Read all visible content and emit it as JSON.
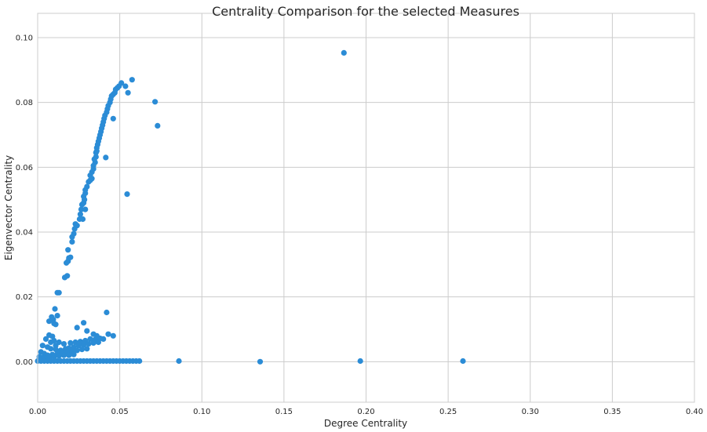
{
  "chart_data": {
    "type": "scatter",
    "title": "Centrality Comparison for the selected Measures",
    "xlabel": "Degree Centrality",
    "ylabel": "Eigenvector Centrality",
    "xlim": [
      0.0,
      0.4
    ],
    "ylim": [
      -0.0125,
      0.1075
    ],
    "xticks": [
      0.0,
      0.05,
      0.1,
      0.15,
      0.2,
      0.25,
      0.3,
      0.35,
      0.4
    ],
    "xtick_labels": [
      "0.00",
      "0.05",
      "0.10",
      "0.15",
      "0.20",
      "0.25",
      "0.30",
      "0.35",
      "0.40"
    ],
    "yticks": [
      0.0,
      0.02,
      0.04,
      0.06,
      0.08,
      0.1
    ],
    "ytick_labels": [
      "0.00",
      "0.02",
      "0.04",
      "0.06",
      "0.08",
      "0.10"
    ],
    "grid": true,
    "legend": "none",
    "marker_color": "#2b8cd6",
    "series": [
      {
        "points": [
          [
            0.012,
            0.0213
          ],
          [
            0.013,
            0.0213
          ],
          [
            0.0165,
            0.026
          ],
          [
            0.018,
            0.0265
          ],
          [
            0.0175,
            0.0305
          ],
          [
            0.0185,
            0.031
          ],
          [
            0.019,
            0.032
          ],
          [
            0.02,
            0.0322
          ],
          [
            0.0185,
            0.0345
          ],
          [
            0.021,
            0.037
          ],
          [
            0.021,
            0.0385
          ],
          [
            0.022,
            0.0395
          ],
          [
            0.0225,
            0.041
          ],
          [
            0.023,
            0.0425
          ],
          [
            0.024,
            0.042
          ],
          [
            0.0255,
            0.044
          ],
          [
            0.026,
            0.0455
          ],
          [
            0.0275,
            0.044
          ],
          [
            0.0265,
            0.047
          ],
          [
            0.027,
            0.0485
          ],
          [
            0.028,
            0.049
          ],
          [
            0.029,
            0.047
          ],
          [
            0.0285,
            0.05
          ],
          [
            0.028,
            0.051
          ],
          [
            0.029,
            0.052
          ],
          [
            0.029,
            0.053
          ],
          [
            0.03,
            0.054
          ],
          [
            0.031,
            0.0555
          ],
          [
            0.032,
            0.056
          ],
          [
            0.033,
            0.0565
          ],
          [
            0.032,
            0.0575
          ],
          [
            0.033,
            0.0585
          ],
          [
            0.034,
            0.0595
          ],
          [
            0.034,
            0.0605
          ],
          [
            0.035,
            0.0615
          ],
          [
            0.0345,
            0.0625
          ],
          [
            0.0355,
            0.0632
          ],
          [
            0.0355,
            0.0645
          ],
          [
            0.036,
            0.065
          ],
          [
            0.036,
            0.066
          ],
          [
            0.0365,
            0.067
          ],
          [
            0.037,
            0.068
          ],
          [
            0.0375,
            0.069
          ],
          [
            0.038,
            0.07
          ],
          [
            0.0385,
            0.071
          ],
          [
            0.039,
            0.072
          ],
          [
            0.0395,
            0.073
          ],
          [
            0.04,
            0.074
          ],
          [
            0.0405,
            0.075
          ],
          [
            0.041,
            0.076
          ],
          [
            0.042,
            0.077
          ],
          [
            0.0425,
            0.078
          ],
          [
            0.043,
            0.079
          ],
          [
            0.044,
            0.08
          ],
          [
            0.0445,
            0.081
          ],
          [
            0.045,
            0.082
          ],
          [
            0.046,
            0.0825
          ],
          [
            0.047,
            0.083
          ],
          [
            0.0475,
            0.084
          ],
          [
            0.0485,
            0.0845
          ],
          [
            0.0495,
            0.085
          ],
          [
            0.051,
            0.086
          ],
          [
            0.0535,
            0.085
          ],
          [
            0.055,
            0.083
          ],
          [
            0.0575,
            0.087
          ],
          [
            0.046,
            0.075
          ],
          [
            0.0415,
            0.063
          ],
          [
            0.0545,
            0.0517
          ],
          [
            0.0715,
            0.0802
          ],
          [
            0.073,
            0.0728
          ],
          [
            0.1865,
            0.0953
          ],
          [
            0.0105,
            0.0163
          ],
          [
            0.012,
            0.0142
          ],
          [
            0.0085,
            0.0138
          ],
          [
            0.0095,
            0.013
          ],
          [
            0.007,
            0.0125
          ],
          [
            0.01,
            0.0118
          ],
          [
            0.011,
            0.0115
          ],
          [
            0.028,
            0.012
          ],
          [
            0.024,
            0.0105
          ],
          [
            0.03,
            0.0095
          ],
          [
            0.042,
            0.0152
          ],
          [
            0.034,
            0.0085
          ],
          [
            0.036,
            0.008
          ],
          [
            0.043,
            0.0085
          ],
          [
            0.046,
            0.008
          ],
          [
            0.007,
            0.0082
          ],
          [
            0.009,
            0.0078
          ],
          [
            0.005,
            0.007
          ],
          [
            0.01,
            0.0065
          ],
          [
            0.013,
            0.006
          ],
          [
            0.016,
            0.0055
          ],
          [
            0.02,
            0.0058
          ],
          [
            0.023,
            0.006
          ],
          [
            0.026,
            0.0062
          ],
          [
            0.029,
            0.0065
          ],
          [
            0.032,
            0.007
          ],
          [
            0.035,
            0.0068
          ],
          [
            0.038,
            0.0072
          ],
          [
            0.04,
            0.007
          ],
          [
            0.003,
            0.005
          ],
          [
            0.006,
            0.0045
          ],
          [
            0.008,
            0.004
          ],
          [
            0.011,
            0.0038
          ],
          [
            0.014,
            0.0035
          ],
          [
            0.017,
            0.004
          ],
          [
            0.019,
            0.0042
          ],
          [
            0.022,
            0.0045
          ],
          [
            0.025,
            0.005
          ],
          [
            0.028,
            0.0052
          ],
          [
            0.031,
            0.0055
          ],
          [
            0.034,
            0.0058
          ],
          [
            0.037,
            0.006
          ],
          [
            0.002,
            0.003
          ],
          [
            0.004,
            0.0025
          ],
          [
            0.006,
            0.002
          ],
          [
            0.009,
            0.0022
          ],
          [
            0.012,
            0.0025
          ],
          [
            0.015,
            0.0028
          ],
          [
            0.018,
            0.003
          ],
          [
            0.021,
            0.0032
          ],
          [
            0.024,
            0.0035
          ],
          [
            0.027,
            0.0038
          ],
          [
            0.03,
            0.004
          ],
          [
            0.001,
            0.0015
          ],
          [
            0.003,
            0.0012
          ],
          [
            0.005,
            0.001
          ],
          [
            0.007,
            0.0012
          ],
          [
            0.01,
            0.0015
          ],
          [
            0.013,
            0.0018
          ],
          [
            0.016,
            0.002
          ],
          [
            0.019,
            0.002
          ],
          [
            0.022,
            0.0022
          ],
          [
            0.008,
            0.006
          ],
          [
            0.011,
            0.005
          ],
          [
            0.004,
            0.001
          ],
          [
            0.0,
            0.0002
          ],
          [
            0.002,
            0.0002
          ],
          [
            0.004,
            0.0002
          ],
          [
            0.006,
            0.0002
          ],
          [
            0.008,
            0.0002
          ],
          [
            0.01,
            0.0002
          ],
          [
            0.012,
            0.0002
          ],
          [
            0.014,
            0.0002
          ],
          [
            0.016,
            0.0002
          ],
          [
            0.018,
            0.0002
          ],
          [
            0.02,
            0.0002
          ],
          [
            0.022,
            0.0002
          ],
          [
            0.024,
            0.0002
          ],
          [
            0.026,
            0.0002
          ],
          [
            0.028,
            0.0002
          ],
          [
            0.03,
            0.0002
          ],
          [
            0.032,
            0.0002
          ],
          [
            0.034,
            0.0002
          ],
          [
            0.036,
            0.0002
          ],
          [
            0.038,
            0.0002
          ],
          [
            0.04,
            0.0002
          ],
          [
            0.042,
            0.0002
          ],
          [
            0.044,
            0.0002
          ],
          [
            0.046,
            0.0002
          ],
          [
            0.048,
            0.0002
          ],
          [
            0.05,
            0.0002
          ],
          [
            0.052,
            0.0002
          ],
          [
            0.054,
            0.0002
          ],
          [
            0.056,
            0.0002
          ],
          [
            0.058,
            0.0002
          ],
          [
            0.06,
            0.0002
          ],
          [
            0.062,
            0.0002
          ],
          [
            0.086,
            0.0002
          ],
          [
            0.1355,
            0.0
          ],
          [
            0.1965,
            0.0002
          ],
          [
            0.259,
            0.0002
          ]
        ]
      }
    ]
  }
}
